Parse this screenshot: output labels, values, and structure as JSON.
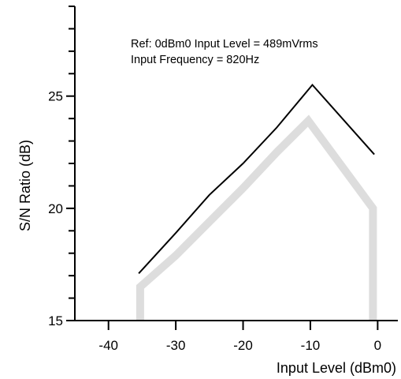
{
  "chart_data": {
    "type": "line",
    "xlabel": "Input  Level  (dBm0)",
    "ylabel": "S/N Ratio  (dB)",
    "xlim": [
      -45,
      3
    ],
    "ylim": [
      15,
      29
    ],
    "x_ticks": [
      -40,
      -30,
      -20,
      -10,
      0
    ],
    "x_tick_labels": [
      "-40",
      "-30",
      "-20",
      "-10",
      "0"
    ],
    "y_ticks": [
      15,
      20,
      25
    ],
    "y_tick_labels": [
      "15",
      "20",
      "25"
    ],
    "grid": false,
    "annotations": [
      "Ref:  0dBm0  Input  Level  =  489mVrms",
      "Input  Frequency  =  820Hz"
    ],
    "series": [
      {
        "style": "thin-black",
        "color": "#000000",
        "x": [
          -35.5,
          -30,
          -25,
          -20,
          -15,
          -9.7,
          -0.5
        ],
        "y": [
          17.1,
          18.9,
          20.6,
          22.0,
          23.6,
          25.5,
          22.4
        ]
      },
      {
        "style": "thick-gray",
        "color": "#dddddd",
        "x": [
          -35.3,
          -35.3,
          -30,
          -25,
          -20,
          -15,
          -10.3,
          -0.7,
          -0.7
        ],
        "y": [
          15.0,
          16.5,
          17.9,
          19.4,
          20.9,
          22.5,
          23.9,
          20.0,
          15.0
        ]
      }
    ]
  }
}
